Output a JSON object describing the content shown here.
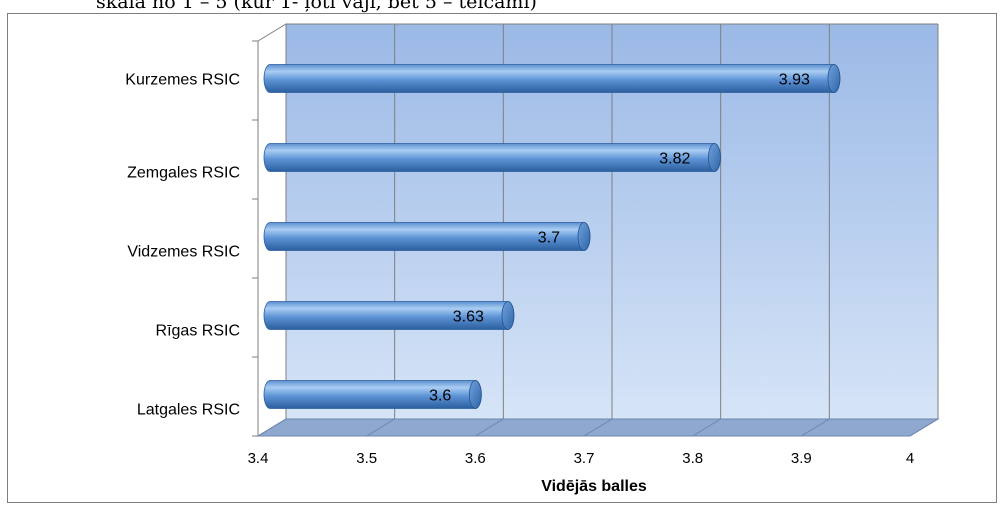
{
  "caption": "skala no 1 – 5 (kur 1- ļoti vāji, bet 5 – teicami)",
  "chart_data": {
    "type": "bar",
    "orientation": "horizontal",
    "style": "3d-cylinder",
    "categories": [
      "Kurzemes RSIC",
      "Zemgales RSIC",
      "Vidzemes RSIC",
      "Rīgas RSIC",
      "Latgales RSIC"
    ],
    "values": [
      3.93,
      3.82,
      3.7,
      3.63,
      3.6
    ],
    "data_labels": [
      "3.93",
      "3.82",
      "3.7",
      "3.63",
      "3.6"
    ],
    "xlim": [
      3.4,
      4
    ],
    "xticks": [
      "3.4",
      "3.5",
      "3.6",
      "3.7",
      "3.8",
      "3.9",
      "4"
    ],
    "xlabel": "Vidējās balles",
    "ylabel": "",
    "title": "",
    "grid": true,
    "legend": "none",
    "colors": {
      "bar_light": "#8fb8e8",
      "bar_dark": "#2f66a8",
      "wall_top": "#9bb9e6",
      "wall_bottom": "#d6e4f7",
      "floor": "#8fa8cf",
      "gridline": "#7f7f7f"
    }
  }
}
